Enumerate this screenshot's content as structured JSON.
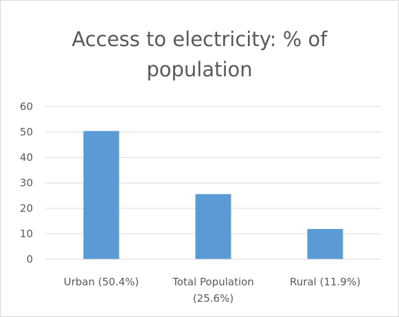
{
  "chart_data": {
    "type": "bar",
    "title_lines": [
      "Access to electricity: % of",
      "population"
    ],
    "categories": [
      [
        "Urban (50.4%)"
      ],
      [
        "Total Population",
        "(25.6%)"
      ],
      [
        "Rural (11.9%)"
      ]
    ],
    "values": [
      50.4,
      25.6,
      11.9
    ],
    "ylim": [
      0,
      60
    ],
    "yticks": [
      "0",
      "10",
      "20",
      "30",
      "40",
      "50",
      "60"
    ],
    "grid": true,
    "legend": "none",
    "bar_color": "#5b9bd5",
    "grid_color": "#d9d9d9",
    "text_color": "#595959"
  }
}
